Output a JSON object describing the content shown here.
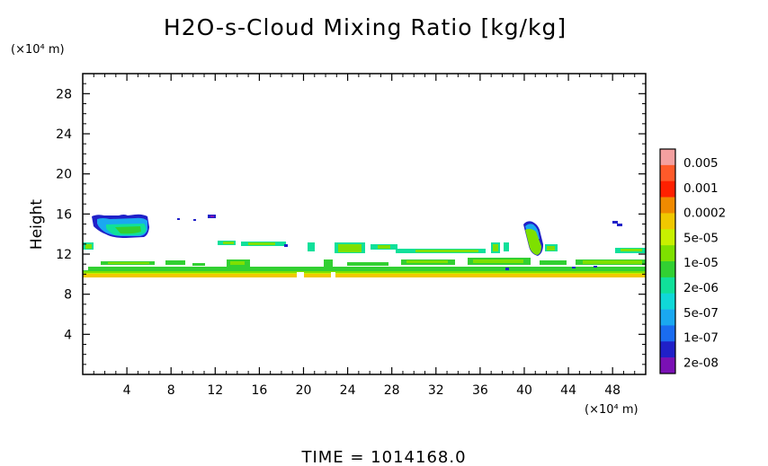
{
  "chart_data": {
    "type": "heatmap",
    "title": "H2O-s-Cloud Mixing Ratio [kg/kg]",
    "ylabel": "Height",
    "y_unit": "(×10⁴ m)",
    "x_unit": "(×10⁴ m)",
    "time_label": "TIME = 1014168.0",
    "xlim": [
      0,
      51
    ],
    "ylim": [
      0,
      30
    ],
    "x_ticks": [
      4,
      8,
      12,
      16,
      20,
      24,
      28,
      32,
      36,
      40,
      44,
      48
    ],
    "y_ticks": [
      4,
      8,
      12,
      16,
      20,
      24,
      28
    ],
    "grid": false,
    "legend_position": "right",
    "colorbar": {
      "labels": [
        "0.005",
        "0.001",
        "0.0002",
        "5e-05",
        "1e-05",
        "2e-06",
        "5e-07",
        "1e-07",
        "2e-08"
      ],
      "colors": [
        "#f4a0a0",
        "#ff5a2a",
        "#ff2000",
        "#f08a00",
        "#f0c800",
        "#c8f000",
        "#7ee000",
        "#32d032",
        "#10e09a",
        "#10d8d8",
        "#1aa8f0",
        "#1a6cf0",
        "#2020c8",
        "#7a10b4"
      ]
    },
    "regions": [
      {
        "x": [
          1.0,
          6.0
        ],
        "y": [
          13.8,
          15.9
        ],
        "level": "2e-06"
      },
      {
        "x": [
          0.0,
          51.0
        ],
        "y": [
          9.6,
          10.0
        ],
        "level": "5e-05"
      },
      {
        "x": [
          0.0,
          51.0
        ],
        "y": [
          10.0,
          10.7
        ],
        "level": "1e-05"
      },
      {
        "x": [
          0.0,
          51.0
        ],
        "y": [
          10.7,
          13.3
        ],
        "level": "1e-05"
      },
      {
        "x": [
          39.7,
          41.4
        ],
        "y": [
          12.0,
          15.2
        ],
        "level": "5e-05"
      }
    ]
  }
}
